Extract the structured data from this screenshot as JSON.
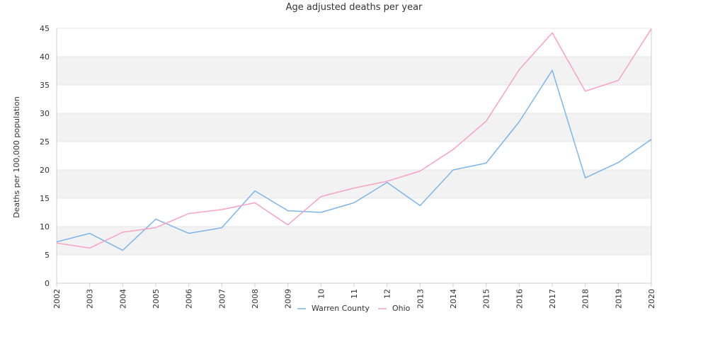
{
  "chart_data": {
    "type": "line",
    "title": "Age adjusted deaths per year",
    "ylabel": "Deaths per 100,000 population",
    "xlabel": "",
    "x": [
      "2002",
      "2003",
      "2004",
      "2005",
      "2006",
      "2007",
      "2008",
      "2009",
      "10",
      "11",
      "12",
      "2013",
      "2014",
      "2015",
      "2016",
      "2017",
      "2018",
      "2019",
      "2020"
    ],
    "ylim": [
      0,
      45
    ],
    "yticks": [
      0,
      5,
      10,
      15,
      20,
      25,
      30,
      35,
      40,
      45
    ],
    "grid": "alternating horizontal bands",
    "legend_position": "bottom",
    "series": [
      {
        "name": "Warren County",
        "color": "#7cb5ec",
        "values": [
          7.3,
          8.8,
          5.8,
          11.3,
          8.8,
          9.8,
          16.3,
          12.8,
          12.5,
          14.2,
          17.8,
          13.7,
          20.0,
          21.2,
          28.5,
          37.6,
          18.6,
          21.3,
          25.4
        ]
      },
      {
        "name": "Ohio",
        "color": "#f7a1c4",
        "values": [
          7.1,
          6.2,
          9.0,
          9.8,
          12.3,
          13.0,
          14.2,
          10.3,
          15.3,
          16.8,
          18.0,
          19.8,
          23.6,
          28.6,
          37.7,
          44.2,
          33.9,
          35.8,
          44.9
        ]
      }
    ]
  },
  "colors": {
    "band": "#f2f2f2",
    "gridline": "#e6e6e6",
    "axis": "#cccccc"
  }
}
